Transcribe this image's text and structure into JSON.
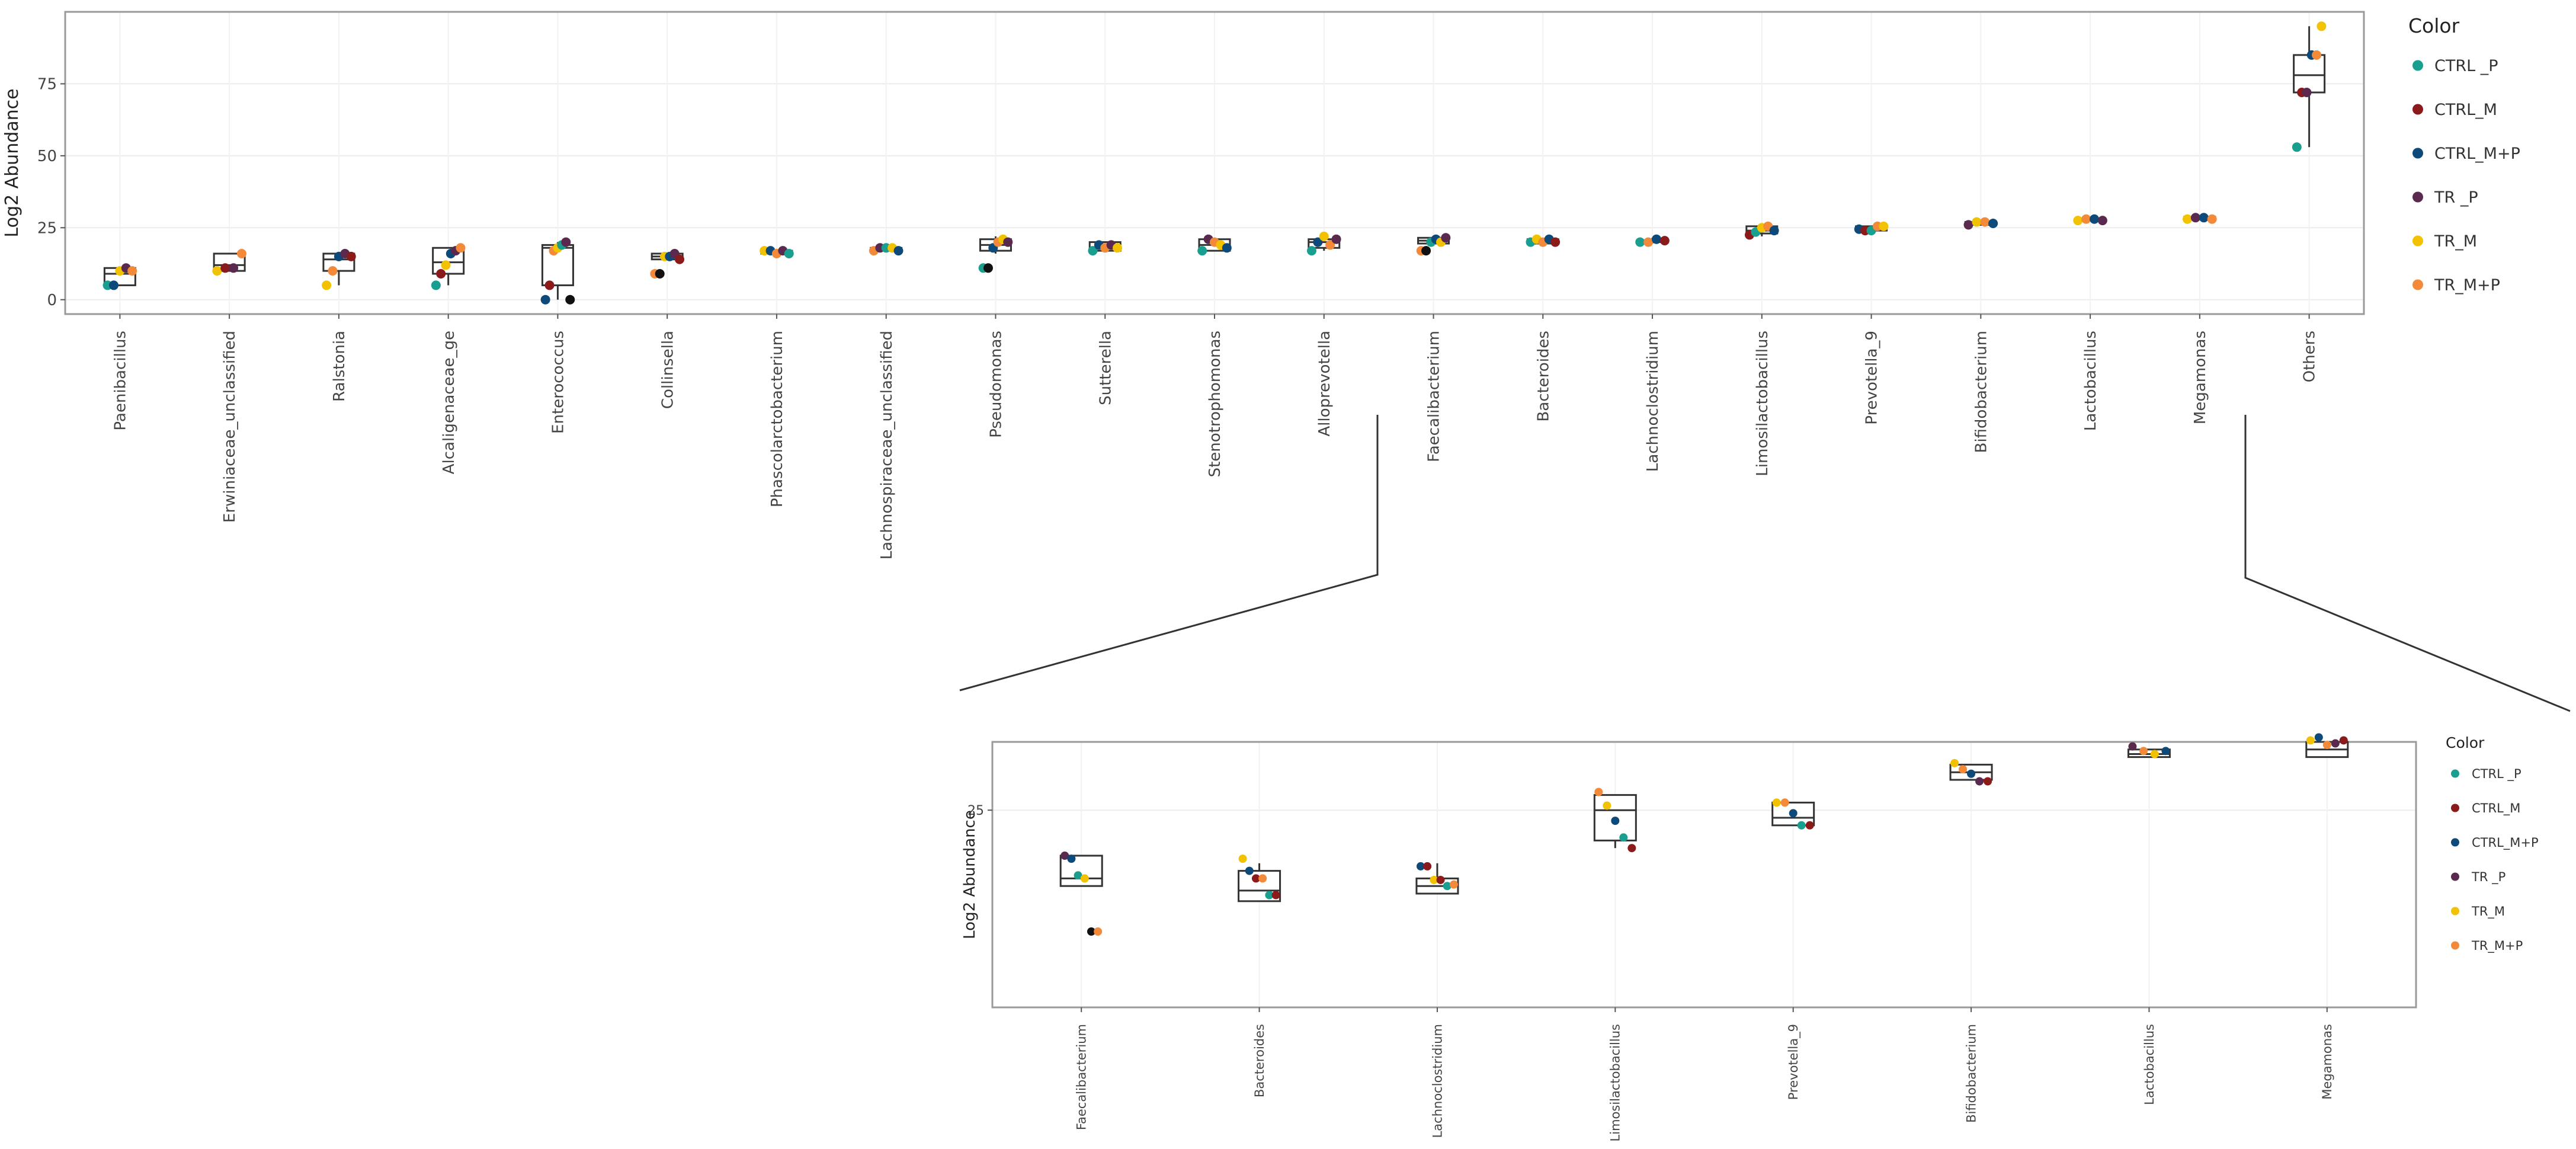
{
  "colors": {
    "CTRL _P": "#1a9e8f",
    "CTRL_M": "#8b1a1a",
    "CTRL_M+P": "#0d4a7a",
    "TR _P": "#5a2a4e",
    "TR_M": "#f2c200",
    "TR_M+P": "#f28a3a",
    "outlier": "#111111"
  },
  "chart_data": [
    {
      "type": "box",
      "name": "main",
      "ylabel": "Log2 Abundance",
      "xlabel": "",
      "ylim": [
        -5,
        100
      ],
      "yticks": [
        0,
        25,
        50,
        75
      ],
      "grid": true,
      "legend": {
        "title": "Color",
        "position": "right",
        "entries": [
          "CTRL _P",
          "CTRL_M",
          "CTRL_M+P",
          "TR _P",
          "TR_M",
          "TR_M+P"
        ]
      },
      "categories": [
        "Paenibacillus",
        "Erwiniaceae_unclassified",
        "Ralstonia",
        "Alcaligenaceae_ge",
        "Enterococcus",
        "Collinsella",
        "Phascolarctobacterium",
        "Lachnospiraceae_unclassified",
        "Pseudomonas",
        "Sutterella",
        "Stenotrophomonas",
        "Alloprevotella",
        "Faecalibacterium",
        "Bacteroides",
        "Lachnoclostridium",
        "Limosilactobacillus",
        "Prevotella_9",
        "Bifidobacterium",
        "Lactobacillus",
        "Megamonas",
        "Others"
      ],
      "boxes": [
        {
          "min": 5,
          "q1": 5,
          "median": 9,
          "q3": 11,
          "max": 11
        },
        {
          "min": 10,
          "q1": 10,
          "median": 12,
          "q3": 16,
          "max": 16
        },
        {
          "min": 5,
          "q1": 10,
          "median": 14,
          "q3": 16,
          "max": 16
        },
        {
          "min": 5,
          "q1": 9,
          "median": 13,
          "q3": 18,
          "max": 18
        },
        {
          "min": 0,
          "q1": 5,
          "median": 18,
          "q3": 19,
          "max": 20
        },
        {
          "min": 14,
          "q1": 14,
          "median": 15,
          "q3": 16,
          "max": 16
        },
        {
          "min": 16,
          "q1": 16,
          "median": 16.5,
          "q3": 17,
          "max": 17
        },
        {
          "min": 17,
          "q1": 17,
          "median": 17.5,
          "q3": 18,
          "max": 18
        },
        {
          "min": 16,
          "q1": 17,
          "median": 19,
          "q3": 21,
          "max": 22
        },
        {
          "min": 17,
          "q1": 17,
          "median": 18,
          "q3": 20,
          "max": 20
        },
        {
          "min": 17,
          "q1": 17,
          "median": 19,
          "q3": 21,
          "max": 21
        },
        {
          "min": 17,
          "q1": 18,
          "median": 20,
          "q3": 21,
          "max": 22
        },
        {
          "min": 19,
          "q1": 19.5,
          "median": 20.5,
          "q3": 21.5,
          "max": 22
        },
        {
          "min": 19,
          "q1": 19.5,
          "median": 20,
          "q3": 21,
          "max": 21.5
        },
        {
          "min": 19.5,
          "q1": 20,
          "median": 20.2,
          "q3": 20.6,
          "max": 21.5
        },
        {
          "min": 22,
          "q1": 23,
          "median": 24,
          "q3": 25.5,
          "max": 25.5
        },
        {
          "min": 24,
          "q1": 24,
          "median": 24.5,
          "q3": 25.5,
          "max": 25.5
        },
        {
          "min": 26,
          "q1": 26,
          "median": 26.5,
          "q3": 27,
          "max": 27
        },
        {
          "min": 27.5,
          "q1": 27.5,
          "median": 27.8,
          "q3": 28,
          "max": 28
        },
        {
          "min": 28,
          "q1": 28,
          "median": 28.3,
          "q3": 28.8,
          "max": 29
        },
        {
          "min": 53,
          "q1": 72,
          "median": 78,
          "q3": 85,
          "max": 95
        }
      ],
      "points": [
        [
          [
            "CTRL _P",
            5
          ],
          [
            "CTRL_M+P",
            5
          ],
          [
            "TR_M",
            10
          ],
          [
            "TR _P",
            11
          ],
          [
            "TR_M+P",
            10
          ]
        ],
        [
          [
            "TR_M",
            10
          ],
          [
            "CTRL_M",
            11
          ],
          [
            "TR _P",
            11
          ],
          [
            "TR_M+P",
            16
          ]
        ],
        [
          [
            "TR_M",
            5
          ],
          [
            "TR_M+P",
            10
          ],
          [
            "CTRL_M+P",
            15
          ],
          [
            "TR _P",
            16
          ],
          [
            "CTRL_M",
            15
          ]
        ],
        [
          [
            "CTRL _P",
            5
          ],
          [
            "CTRL_M",
            9
          ],
          [
            "TR_M",
            12
          ],
          [
            "CTRL_M+P",
            16
          ],
          [
            "TR _P",
            17
          ],
          [
            "TR_M+P",
            18
          ]
        ],
        [
          [
            "CTRL_M+P",
            0
          ],
          [
            "CTRL_M",
            5
          ],
          [
            "TR_M+P",
            17
          ],
          [
            "TR_M",
            18
          ],
          [
            "CTRL _P",
            19
          ],
          [
            "TR _P",
            20
          ],
          [
            "outlier",
            0
          ]
        ],
        [
          [
            "TR_M+P",
            9
          ],
          [
            "outlier",
            9
          ],
          [
            "TR_M",
            15
          ],
          [
            "CTRL_M+P",
            15
          ],
          [
            "TR _P",
            16
          ],
          [
            "CTRL_M",
            14
          ]
        ],
        [
          [
            "TR_M",
            17
          ],
          [
            "CTRL_M+P",
            17
          ],
          [
            "TR_M+P",
            16
          ],
          [
            "TR _P",
            17
          ],
          [
            "CTRL _P",
            16
          ]
        ],
        [
          [
            "TR_M+P",
            17
          ],
          [
            "TR _P",
            18
          ],
          [
            "CTRL _P",
            18
          ],
          [
            "TR_M",
            18
          ],
          [
            "CTRL_M+P",
            17
          ]
        ],
        [
          [
            "CTRL _P",
            11
          ],
          [
            "outlier",
            11
          ],
          [
            "CTRL_M+P",
            18
          ],
          [
            "TR_M+P",
            20
          ],
          [
            "TR_M",
            21
          ],
          [
            "TR _P",
            20
          ]
        ],
        [
          [
            "CTRL _P",
            17
          ],
          [
            "CTRL_M+P",
            19
          ],
          [
            "TR_M+P",
            18
          ],
          [
            "TR _P",
            19
          ],
          [
            "TR_M",
            18
          ]
        ],
        [
          [
            "CTRL _P",
            17
          ],
          [
            "TR _P",
            21
          ],
          [
            "TR_M+P",
            20
          ],
          [
            "TR_M",
            19
          ],
          [
            "CTRL_M+P",
            18
          ]
        ],
        [
          [
            "CTRL _P",
            17
          ],
          [
            "CTRL_M+P",
            20
          ],
          [
            "TR_M",
            22
          ],
          [
            "TR_M+P",
            19
          ],
          [
            "TR _P",
            21
          ]
        ],
        [
          [
            "TR_M+P",
            17
          ],
          [
            "outlier",
            17
          ],
          [
            "CTRL _P",
            20
          ],
          [
            "CTRL_M+P",
            21
          ],
          [
            "TR_M",
            20
          ],
          [
            "TR _P",
            21.5
          ]
        ],
        [
          [
            "CTRL _P",
            20
          ],
          [
            "TR_M",
            21
          ],
          [
            "TR_M+P",
            20
          ],
          [
            "CTRL_M+P",
            21
          ],
          [
            "CTRL_M",
            20
          ]
        ],
        [
          [
            "CTRL _P",
            20
          ],
          [
            "TR_M+P",
            20
          ],
          [
            "CTRL_M+P",
            21
          ],
          [
            "CTRL_M",
            20.5
          ]
        ],
        [
          [
            "CTRL_M",
            22.5
          ],
          [
            "CTRL _P",
            23.5
          ],
          [
            "TR_M",
            25
          ],
          [
            "TR_M+P",
            25.5
          ],
          [
            "CTRL_M+P",
            24
          ]
        ],
        [
          [
            "CTRL_M+P",
            24.5
          ],
          [
            "CTRL_M",
            24
          ],
          [
            "CTRL _P",
            24
          ],
          [
            "TR_M+P",
            25.5
          ],
          [
            "TR_M",
            25.5
          ]
        ],
        [
          [
            "TR _P",
            26
          ],
          [
            "TR_M",
            27
          ],
          [
            "TR_M+P",
            27
          ],
          [
            "CTRL_M+P",
            26.5
          ]
        ],
        [
          [
            "TR_M",
            27.5
          ],
          [
            "TR_M+P",
            28
          ],
          [
            "CTRL_M+P",
            28
          ],
          [
            "TR _P",
            27.5
          ]
        ],
        [
          [
            "TR_M",
            28
          ],
          [
            "TR _P",
            28.5
          ],
          [
            "CTRL_M+P",
            28.5
          ],
          [
            "TR_M+P",
            28
          ]
        ],
        [
          [
            "CTRL _P",
            53
          ],
          [
            "CTRL_M",
            72
          ],
          [
            "TR _P",
            72
          ],
          [
            "CTRL_M+P",
            85
          ],
          [
            "TR_M+P",
            85
          ],
          [
            "TR_M",
            95
          ]
        ]
      ]
    },
    {
      "type": "box",
      "name": "inset",
      "ylabel": "Log2 Abundance",
      "xlabel": "",
      "ylim": [
        12,
        29.5
      ],
      "yticks": [
        25
      ],
      "grid": true,
      "legend": {
        "title": "Color",
        "position": "right",
        "entries": [
          "CTRL _P",
          "CTRL_M",
          "CTRL_M+P",
          "TR _P",
          "TR_M",
          "TR_M+P"
        ]
      },
      "categories": [
        "Faecalibacterium",
        "Bacteroides",
        "Lachnoclostridium",
        "Limosilactobacillus",
        "Prevotella_9",
        "Bifidobacterium",
        "Lactobacillus",
        "Megamonas"
      ],
      "boxes": [
        {
          "min": 20,
          "q1": 20,
          "median": 20.5,
          "q3": 22,
          "max": 22
        },
        {
          "min": 19,
          "q1": 19,
          "median": 19.7,
          "q3": 21,
          "max": 21.5
        },
        {
          "min": 19.5,
          "q1": 19.5,
          "median": 20,
          "q3": 20.5,
          "max": 21.5
        },
        {
          "min": 22.5,
          "q1": 23,
          "median": 25,
          "q3": 26,
          "max": 26
        },
        {
          "min": 24,
          "q1": 24,
          "median": 24.5,
          "q3": 25.5,
          "max": 25.5
        },
        {
          "min": 27,
          "q1": 27,
          "median": 27.5,
          "q3": 28,
          "max": 28
        },
        {
          "min": 28.5,
          "q1": 28.5,
          "median": 28.7,
          "q3": 29,
          "max": 29
        },
        {
          "min": 28.5,
          "q1": 28.5,
          "median": 29,
          "q3": 29.5,
          "max": 29.5
        }
      ],
      "points": [
        [
          [
            "TR _P",
            22
          ],
          [
            "CTRL_M+P",
            21.8
          ],
          [
            "CTRL _P",
            20.7
          ],
          [
            "TR_M",
            20.5
          ],
          [
            "outlier",
            17
          ],
          [
            "TR_M+P",
            17
          ]
        ],
        [
          [
            "TR_M",
            21.8
          ],
          [
            "CTRL_M+P",
            21
          ],
          [
            "CTRL_M",
            20.5
          ],
          [
            "TR_M+P",
            20.5
          ],
          [
            "CTRL _P",
            19.4
          ],
          [
            "CTRL_M",
            19.4
          ]
        ],
        [
          [
            "CTRL_M+P",
            21.3
          ],
          [
            "CTRL_M",
            21.3
          ],
          [
            "TR_M",
            20.4
          ],
          [
            "CTRL_M",
            20.4
          ],
          [
            "CTRL _P",
            20
          ],
          [
            "TR_M+P",
            20.1
          ]
        ],
        [
          [
            "TR_M+P",
            26.2
          ],
          [
            "TR_M",
            25.3
          ],
          [
            "CTRL_M+P",
            24.3
          ],
          [
            "CTRL _P",
            23.2
          ],
          [
            "CTRL_M",
            22.5
          ]
        ],
        [
          [
            "TR_M",
            25.5
          ],
          [
            "TR_M+P",
            25.5
          ],
          [
            "CTRL_M+P",
            24.8
          ],
          [
            "CTRL _P",
            24
          ],
          [
            "CTRL_M",
            24
          ]
        ],
        [
          [
            "TR_M",
            28.1
          ],
          [
            "TR_M+P",
            27.7
          ],
          [
            "CTRL_M+P",
            27.4
          ],
          [
            "TR _P",
            26.9
          ],
          [
            "CTRL_M",
            26.9
          ]
        ],
        [
          [
            "TR _P",
            29.2
          ],
          [
            "TR_M+P",
            28.9
          ],
          [
            "TR_M",
            28.7
          ],
          [
            "CTRL_M+P",
            28.9
          ]
        ],
        [
          [
            "TR_M",
            29.6
          ],
          [
            "CTRL_M+P",
            29.8
          ],
          [
            "TR_M+P",
            29.3
          ],
          [
            "TR _P",
            29.4
          ],
          [
            "CTRL_M",
            29.6
          ]
        ]
      ]
    }
  ]
}
